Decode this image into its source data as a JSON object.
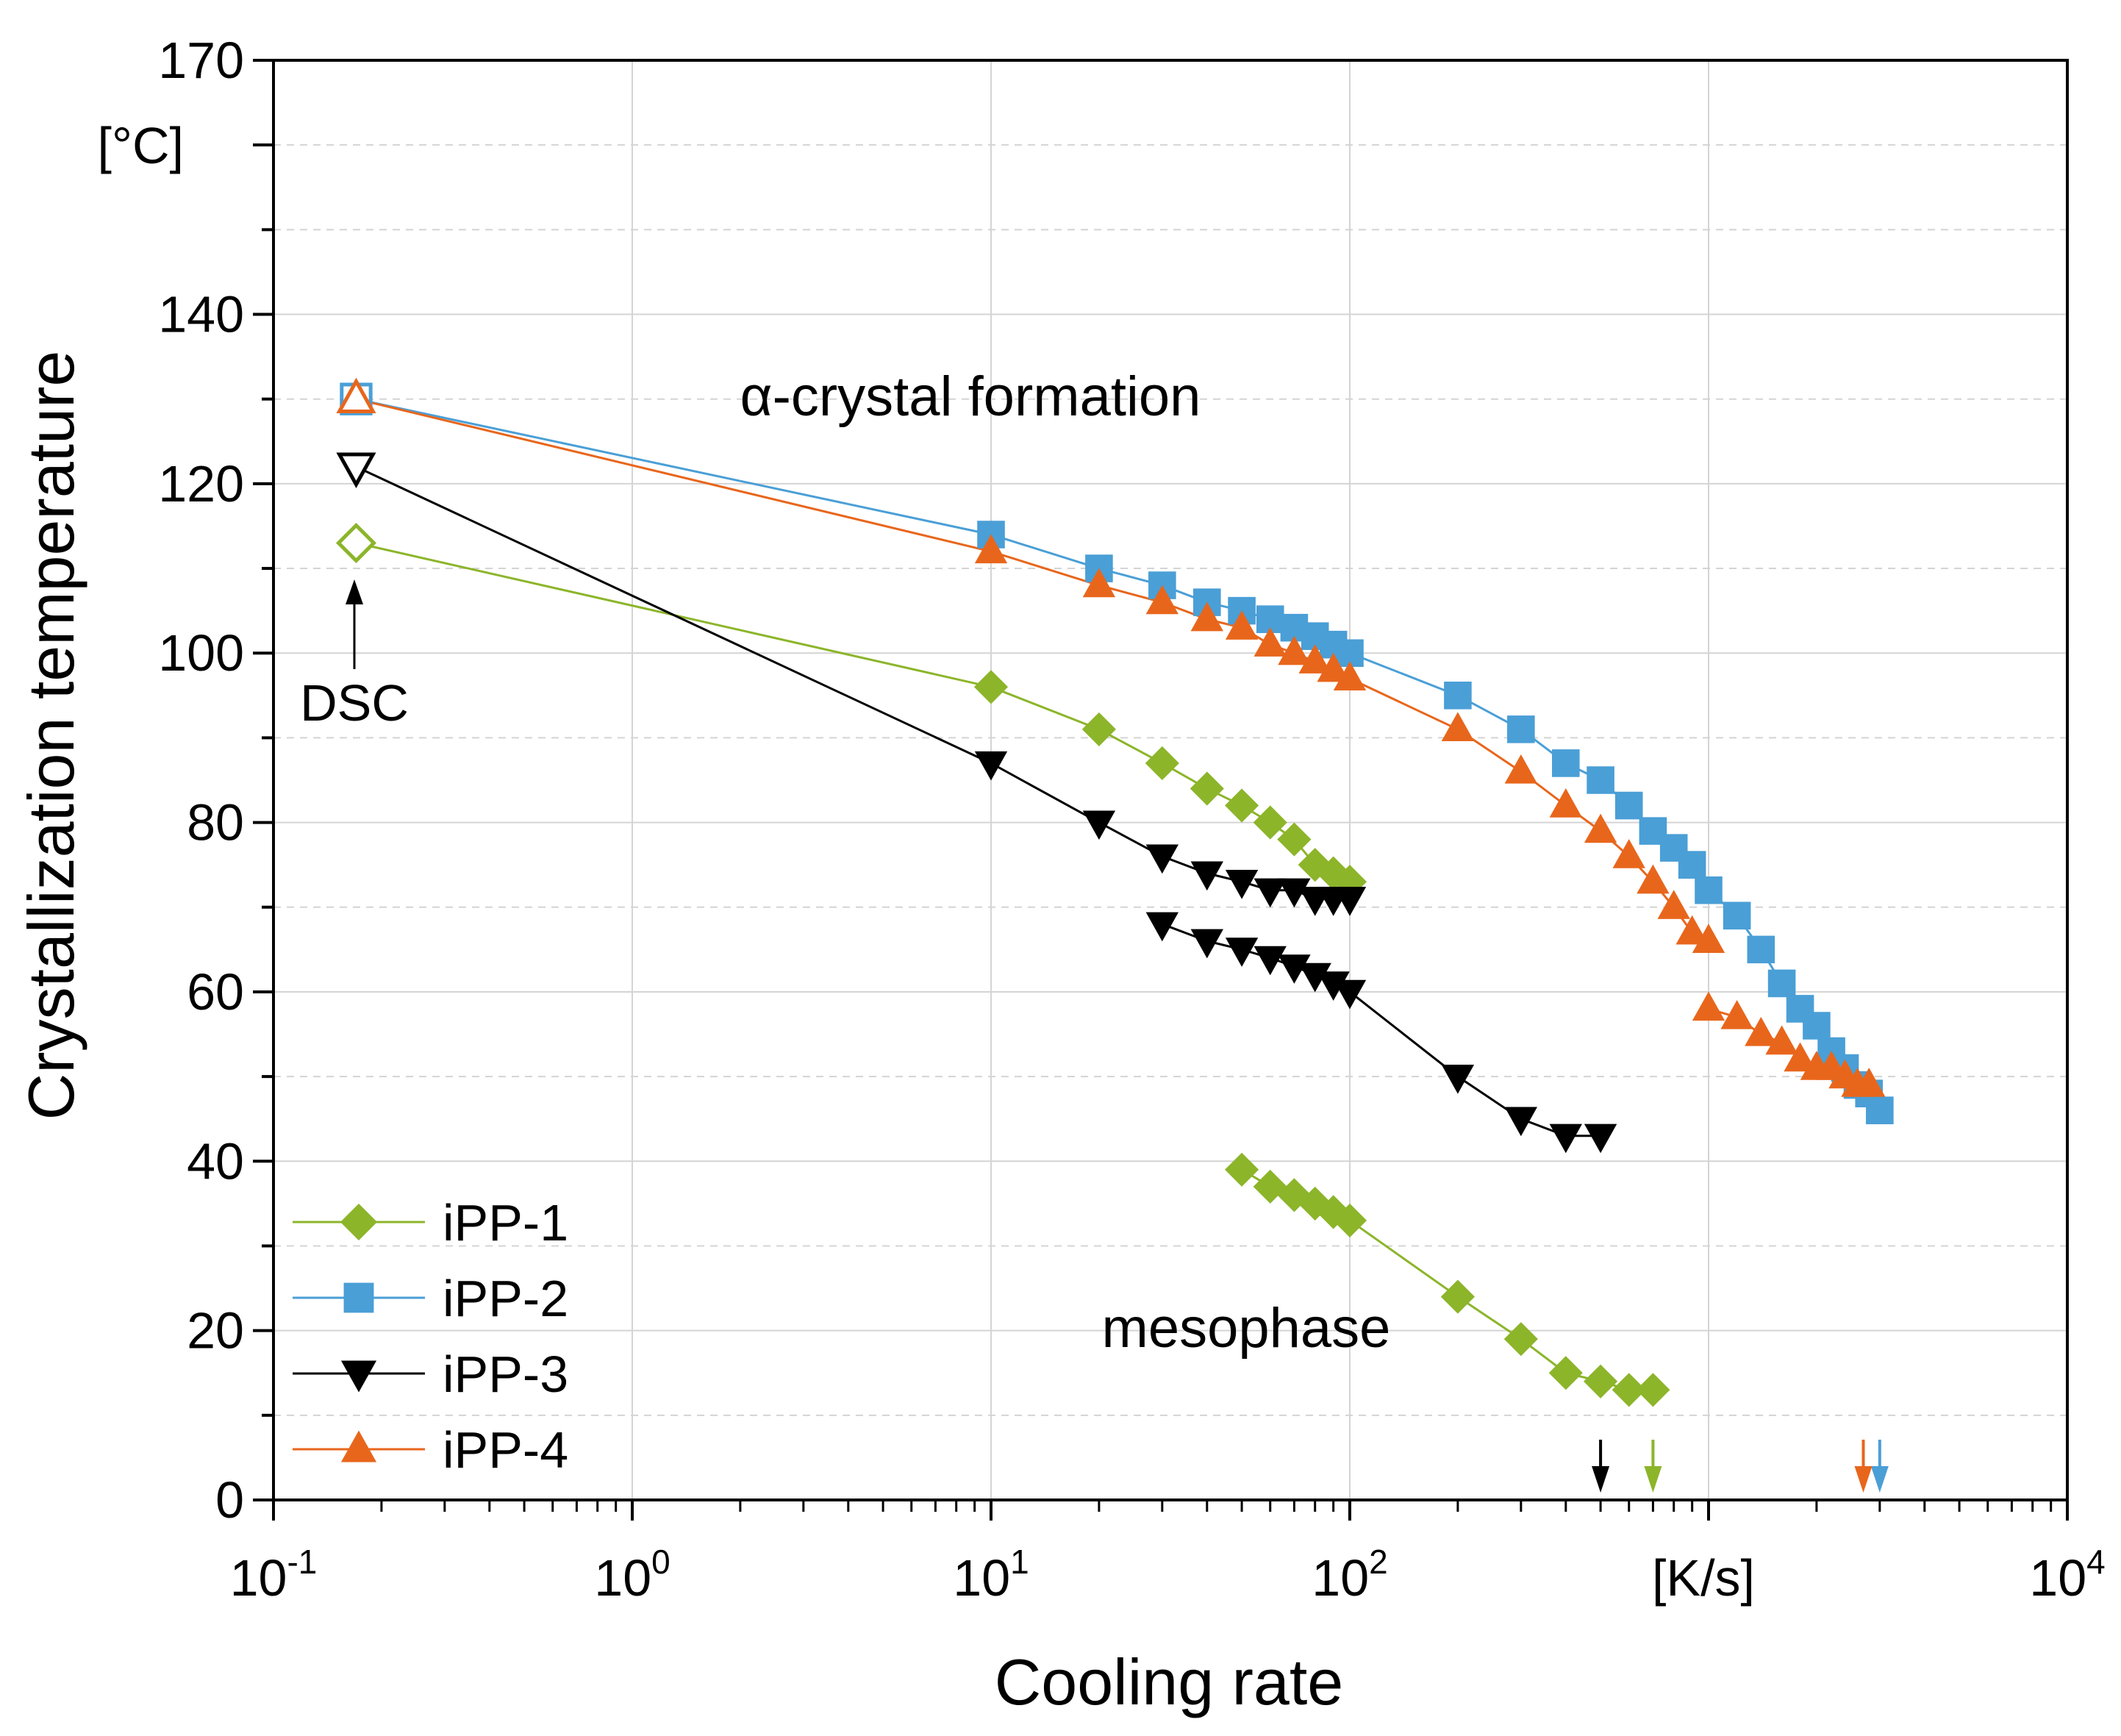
{
  "chart_data": {
    "type": "scatter",
    "xscale": "log",
    "xlim": [
      0.1,
      10000
    ],
    "ylim": [
      0,
      170
    ],
    "ylabel": "Crystallization temperature",
    "yunit": "[°C]",
    "xlabel": "Cooling rate",
    "xunit": "[K/s]",
    "grid": true,
    "y_ticks": [
      0,
      20,
      40,
      60,
      80,
      100,
      120,
      140,
      170
    ],
    "x_ticks": [
      {
        "value": 0.1,
        "base": "10",
        "exp": "-1"
      },
      {
        "value": 1,
        "base": "10",
        "exp": "0"
      },
      {
        "value": 10,
        "base": "10",
        "exp": "1"
      },
      {
        "value": 100,
        "base": "10",
        "exp": "2"
      },
      {
        "value": 10000,
        "base": "10",
        "exp": "4"
      }
    ],
    "legend_position": "bottom-left",
    "annotations": {
      "alpha": "α-crystal formation",
      "meso": "mesophase",
      "dsc": "DSC"
    },
    "series": [
      {
        "name": "iPP-1",
        "color": "#8cb52a",
        "marker": "diamond",
        "dsc": {
          "x": 0.17,
          "y": 113
        },
        "segments": [
          {
            "x": [
              10,
              20,
              30,
              40,
              50,
              60,
              70,
              80,
              90,
              100
            ],
            "y": [
              96,
              91,
              87,
              84,
              82,
              80,
              78,
              75,
              74,
              73
            ]
          },
          {
            "x": [
              50,
              60,
              70,
              80,
              90,
              100,
              200,
              300,
              400,
              500,
              600,
              700
            ],
            "y": [
              39,
              37,
              36,
              35,
              34,
              33,
              24,
              19,
              15,
              14,
              13,
              13
            ]
          }
        ],
        "critical_rate": 700
      },
      {
        "name": "iPP-2",
        "color": "#4a9fd6",
        "marker": "square",
        "dsc": {
          "x": 0.17,
          "y": 130
        },
        "segments": [
          {
            "x": [
              10,
              20,
              30,
              40,
              50,
              60,
              70,
              80,
              90,
              100,
              200,
              300,
              400,
              500,
              600,
              700,
              800,
              900,
              1000,
              1200,
              1400,
              1600,
              1800,
              2000,
              2200,
              2400,
              2600,
              2800,
              3000
            ],
            "y": [
              114,
              110,
              108,
              106,
              105,
              104,
              103,
              102,
              101,
              100,
              95,
              91,
              87,
              85,
              82,
              79,
              77,
              75,
              72,
              69,
              65,
              61,
              58,
              56,
              53,
              51,
              49,
              48,
              46
            ]
          }
        ],
        "critical_rate": 3000
      },
      {
        "name": "iPP-3",
        "color": "#000000",
        "marker": "triangle-down",
        "dsc": {
          "x": 0.17,
          "y": 122
        },
        "segments": [
          {
            "x": [
              10,
              20,
              30,
              40,
              50,
              60,
              70,
              80,
              90,
              100
            ],
            "y": [
              87,
              80,
              76,
              74,
              73,
              72,
              72,
              71,
              71,
              71
            ]
          },
          {
            "x": [
              30,
              40,
              50,
              60,
              70,
              80,
              90,
              100,
              200,
              300,
              400,
              500
            ],
            "y": [
              68,
              66,
              65,
              64,
              63,
              62,
              61,
              60,
              50,
              45,
              43,
              43
            ]
          }
        ],
        "critical_rate": 500
      },
      {
        "name": "iPP-4",
        "color": "#e8661c",
        "marker": "triangle-up",
        "dsc": {
          "x": 0.17,
          "y": 130
        },
        "segments": [
          {
            "x": [
              10,
              20,
              30,
              40,
              50,
              60,
              70,
              80,
              90,
              100,
              200,
              300,
              400,
              500,
              600,
              700,
              800,
              900,
              1000
            ],
            "y": [
              112,
              108,
              106,
              104,
              103,
              101,
              100,
              99,
              98,
              97,
              91,
              86,
              82,
              79,
              76,
              73,
              70,
              67,
              66
            ]
          },
          {
            "x": [
              1000,
              1200,
              1400,
              1600,
              1800,
              2000,
              2200,
              2400,
              2600,
              2800
            ],
            "y": [
              58,
              57,
              55,
              54,
              52,
              51,
              51,
              50,
              49,
              49
            ]
          }
        ],
        "critical_rate": 2700
      }
    ]
  }
}
